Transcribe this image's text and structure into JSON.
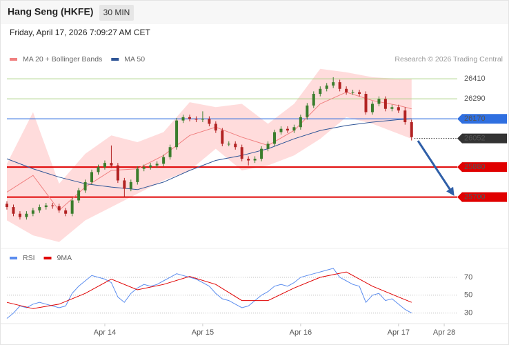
{
  "header": {
    "title": "Hang Seng (HKFE)",
    "timeframe": "30 MIN",
    "timestamp": "Friday, April 17, 2026 7:09:27 AM CET"
  },
  "chart_data": [
    {
      "type": "candlestick",
      "credit": "Research © 2026 Trading Central",
      "xlim": [
        0,
        138
      ],
      "ylim": [
        25400,
        26490
      ],
      "up_color": "#3a7d2c",
      "down_color": "#b22222",
      "x": [
        0,
        2,
        4,
        6,
        8,
        10,
        12,
        14,
        16,
        18,
        20,
        22,
        24,
        26,
        28,
        30,
        32,
        34,
        36,
        38,
        40,
        42,
        44,
        46,
        48,
        50,
        52,
        54,
        56,
        58,
        60,
        62,
        64,
        66,
        68,
        70,
        72,
        74,
        76,
        78,
        80,
        82,
        84,
        86,
        88,
        90,
        92,
        94,
        96,
        98,
        100,
        102,
        104,
        106,
        108,
        110,
        112,
        114,
        116,
        118,
        120,
        122,
        124
      ],
      "ohlc": [
        [
          25660,
          25675,
          25625,
          25640
        ],
        [
          25640,
          25655,
          25585,
          25600
        ],
        [
          25600,
          25615,
          25565,
          25580
        ],
        [
          25580,
          25615,
          25565,
          25600
        ],
        [
          25600,
          25635,
          25585,
          25620
        ],
        [
          25620,
          25655,
          25605,
          25640
        ],
        [
          25640,
          25665,
          25625,
          25650
        ],
        [
          25650,
          25665,
          25630,
          25645
        ],
        [
          25645,
          25660,
          25605,
          25620
        ],
        [
          25620,
          25635,
          25585,
          25600
        ],
        [
          25600,
          25695,
          25585,
          25680
        ],
        [
          25680,
          25755,
          25665,
          25740
        ],
        [
          25740,
          25805,
          25725,
          25790
        ],
        [
          25790,
          25865,
          25775,
          25850
        ],
        [
          25850,
          25895,
          25835,
          25880
        ],
        [
          25880,
          25920,
          25865,
          25905
        ],
        [
          25905,
          26010,
          25875,
          25890
        ],
        [
          25890,
          25905,
          25785,
          25800
        ],
        [
          25800,
          25815,
          25700,
          25750
        ],
        [
          25750,
          25805,
          25735,
          25790
        ],
        [
          25790,
          25885,
          25775,
          25870
        ],
        [
          25870,
          25895,
          25855,
          25880
        ],
        [
          25880,
          25905,
          25865,
          25890
        ],
        [
          25890,
          25915,
          25875,
          25900
        ],
        [
          25900,
          25955,
          25885,
          25940
        ],
        [
          25940,
          26015,
          25925,
          26000
        ],
        [
          26000,
          26175,
          25985,
          26160
        ],
        [
          26160,
          26195,
          26145,
          26180
        ],
        [
          26180,
          26195,
          26155,
          26170
        ],
        [
          26170,
          26185,
          26150,
          26165
        ],
        [
          26165,
          26215,
          26150,
          26170
        ],
        [
          26170,
          26185,
          26125,
          26140
        ],
        [
          26140,
          26155,
          26085,
          26100
        ],
        [
          26100,
          26115,
          26005,
          26020
        ],
        [
          26020,
          26035,
          26005,
          26020
        ],
        [
          26020,
          26035,
          25985,
          26000
        ],
        [
          26000,
          26015,
          25915,
          25930
        ],
        [
          25930,
          25945,
          25890,
          25920
        ],
        [
          25920,
          25945,
          25905,
          25930
        ],
        [
          25930,
          26005,
          25915,
          25990
        ],
        [
          25990,
          26035,
          25975,
          26020
        ],
        [
          26020,
          26105,
          26005,
          26090
        ],
        [
          26090,
          26125,
          26075,
          26110
        ],
        [
          26110,
          26125,
          26085,
          26100
        ],
        [
          26100,
          26135,
          26085,
          26120
        ],
        [
          26120,
          26195,
          26105,
          26180
        ],
        [
          26180,
          26265,
          26165,
          26250
        ],
        [
          26250,
          26335,
          26235,
          26320
        ],
        [
          26320,
          26365,
          26305,
          26350
        ],
        [
          26350,
          26385,
          26335,
          26370
        ],
        [
          26370,
          26420,
          26355,
          26390
        ],
        [
          26390,
          26405,
          26335,
          26350
        ],
        [
          26350,
          26365,
          26315,
          26330
        ],
        [
          26330,
          26345,
          26315,
          26330
        ],
        [
          26330,
          26345,
          26305,
          26320
        ],
        [
          26320,
          26335,
          26195,
          26210
        ],
        [
          26210,
          26275,
          26195,
          26260
        ],
        [
          26260,
          26305,
          26245,
          26290
        ],
        [
          26290,
          26305,
          26215,
          26230
        ],
        [
          26230,
          26255,
          26215,
          26240
        ],
        [
          26240,
          26255,
          26205,
          26220
        ],
        [
          26220,
          26240,
          26135,
          26150
        ],
        [
          26150,
          26165,
          26040,
          26060
        ]
      ],
      "series": [
        {
          "name": "MA 20 + Bollinger Bands",
          "color": "#f08080",
          "band_color": "#ffd3d3",
          "x": [
            0,
            8,
            16,
            24,
            32,
            40,
            48,
            56,
            64,
            72,
            80,
            88,
            96,
            104,
            112,
            120,
            124
          ],
          "values": [
            25730,
            25830,
            25620,
            25760,
            25860,
            25870,
            25950,
            26070,
            26120,
            26060,
            26010,
            26100,
            26260,
            26330,
            26280,
            26250,
            26230
          ],
          "upper": [
            25900,
            26210,
            25780,
            25960,
            26070,
            26030,
            26090,
            26270,
            26240,
            26260,
            26140,
            26260,
            26470,
            26450,
            26420,
            26410,
            26410
          ],
          "lower": [
            25560,
            25470,
            25430,
            25560,
            25640,
            25720,
            25800,
            25860,
            25990,
            25860,
            25890,
            25950,
            26050,
            26180,
            26140,
            26080,
            26050
          ]
        },
        {
          "name": "MA 50",
          "color": "#2f5597",
          "x": [
            0,
            8,
            16,
            24,
            32,
            40,
            48,
            56,
            64,
            72,
            80,
            88,
            96,
            104,
            112,
            120,
            124
          ],
          "values": [
            25930,
            25870,
            25820,
            25780,
            25760,
            25745,
            25790,
            25860,
            25920,
            25950,
            25990,
            26050,
            26100,
            26130,
            26150,
            26165,
            26170
          ]
        }
      ],
      "levels": [
        {
          "value": 26410,
          "color": "#a5cf7f",
          "style": "solid",
          "width": 1,
          "boxed": false,
          "text_color": "#5a9a1e"
        },
        {
          "value": 26290,
          "color": "#a5cf7f",
          "style": "solid",
          "width": 1,
          "boxed": false,
          "text_color": "#5a9a1e"
        },
        {
          "value": 26170,
          "color": "#2f6fe0",
          "style": "solid",
          "width": 1.2,
          "boxed": true,
          "text_color": "#ffffff"
        },
        {
          "value": 26052,
          "color": "#333333",
          "style": "dotted",
          "width": 1,
          "boxed": true,
          "text_color": "#ffffff"
        },
        {
          "value": 25880,
          "color": "#e00000",
          "style": "solid",
          "width": 2,
          "boxed": true,
          "text_color": "#ffffff"
        },
        {
          "value": 25700,
          "color": "#e00000",
          "style": "solid",
          "width": 2,
          "boxed": true,
          "text_color": "#ffffff"
        }
      ]
    },
    {
      "type": "line",
      "xlim": [
        0,
        138
      ],
      "ylim": [
        19,
        83
      ],
      "yticks": [
        30,
        50,
        70
      ],
      "grid": true,
      "xticks": [
        {
          "value": 30,
          "label": "Apr 14"
        },
        {
          "value": 60,
          "label": "Apr 15"
        },
        {
          "value": 90,
          "label": "Apr 16"
        },
        {
          "value": 120,
          "label": "Apr 17"
        },
        {
          "value": 134,
          "label": "Apr 28"
        }
      ],
      "series": [
        {
          "name": "RSI",
          "color": "#5b8def",
          "x": [
            0,
            2,
            4,
            6,
            8,
            10,
            12,
            14,
            16,
            18,
            20,
            22,
            24,
            26,
            28,
            30,
            32,
            34,
            36,
            38,
            40,
            42,
            44,
            46,
            48,
            50,
            52,
            54,
            56,
            58,
            60,
            62,
            64,
            66,
            68,
            70,
            72,
            74,
            76,
            78,
            80,
            82,
            84,
            86,
            88,
            90,
            92,
            94,
            96,
            98,
            100,
            102,
            104,
            106,
            108,
            110,
            112,
            114,
            116,
            118,
            120,
            122,
            124
          ],
          "values": [
            24,
            30,
            38,
            36,
            40,
            42,
            40,
            38,
            36,
            38,
            52,
            60,
            66,
            72,
            70,
            68,
            64,
            48,
            42,
            52,
            58,
            62,
            60,
            62,
            66,
            70,
            74,
            72,
            70,
            68,
            64,
            60,
            52,
            46,
            44,
            40,
            36,
            38,
            44,
            50,
            54,
            60,
            62,
            60,
            64,
            70,
            72,
            74,
            76,
            78,
            80,
            70,
            66,
            62,
            60,
            42,
            50,
            52,
            44,
            46,
            40,
            34,
            30
          ]
        },
        {
          "name": "9MA",
          "color": "#e00000",
          "x": [
            0,
            8,
            16,
            24,
            32,
            40,
            48,
            56,
            64,
            72,
            80,
            88,
            96,
            104,
            112,
            120,
            124
          ],
          "values": [
            42,
            35,
            40,
            52,
            68,
            56,
            62,
            71,
            62,
            44,
            44,
            58,
            70,
            76,
            60,
            48,
            42
          ]
        }
      ]
    }
  ]
}
